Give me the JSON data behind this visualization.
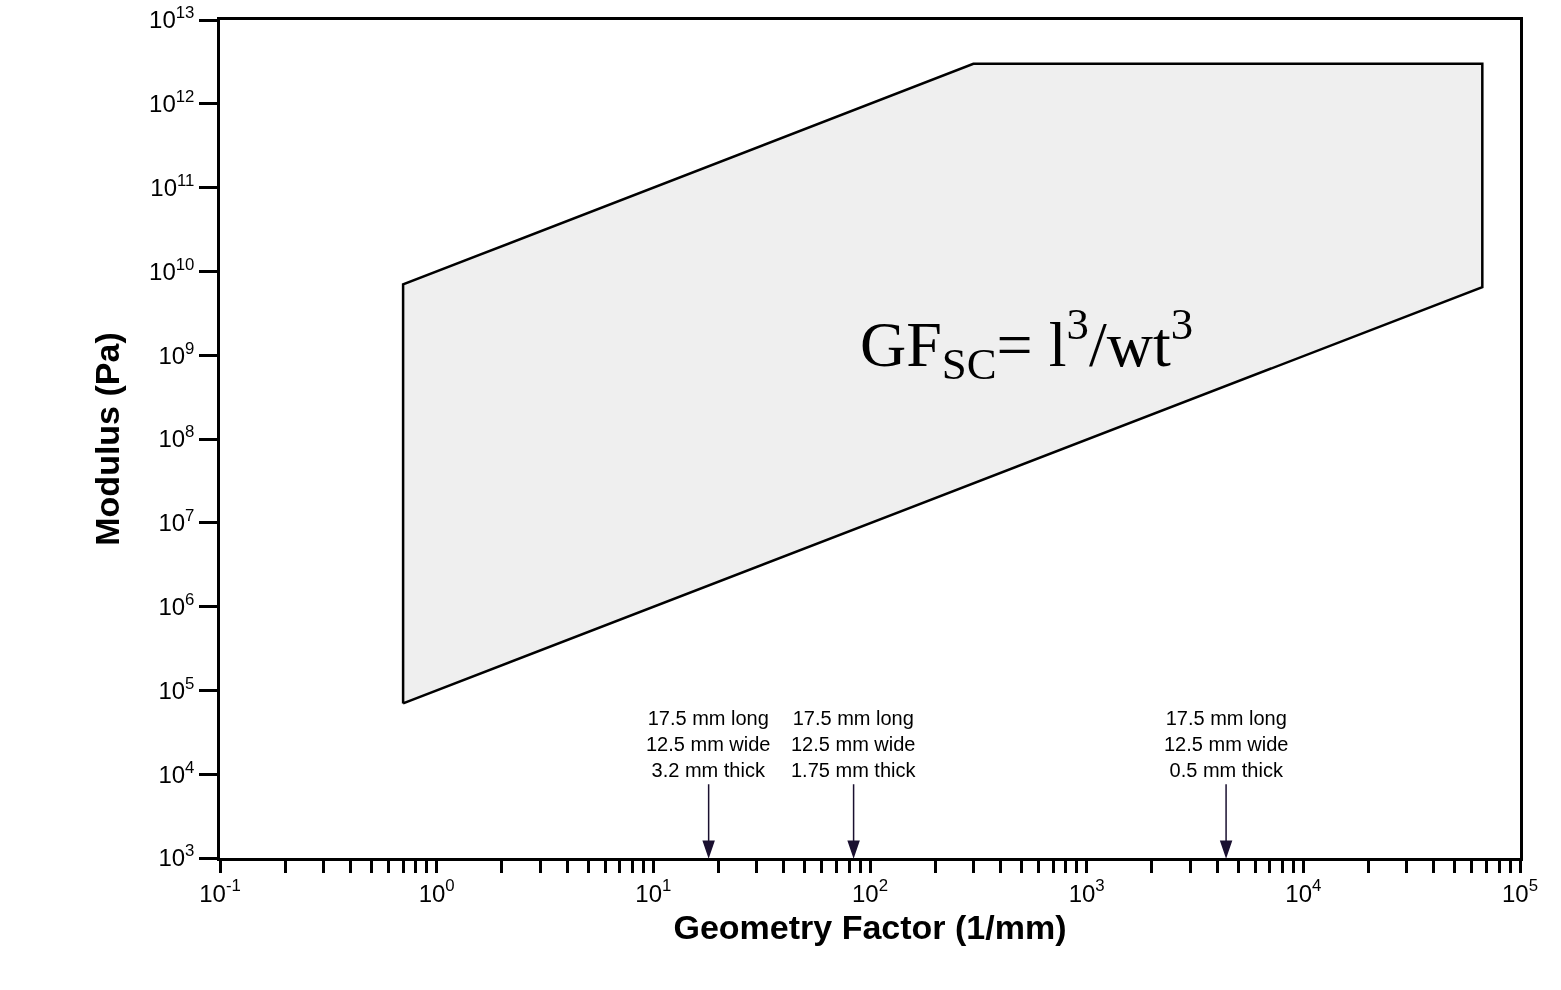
{
  "chart_data": {
    "type": "area",
    "xlabel": "Geometry Factor (1/mm)",
    "ylabel": "Modulus (Pa)",
    "log": "xy",
    "grid": false,
    "marker": "none",
    "line_style": "solid",
    "xlim": [
      0.1,
      100000
    ],
    "ylim": [
      1000,
      10000000000000
    ],
    "xticks": [
      {
        "value": 0.1,
        "label": "10$^{-1}$"
      },
      {
        "value": 0.2,
        "label": null
      },
      {
        "value": 0.3,
        "label": null
      },
      {
        "value": 0.4,
        "label": null
      },
      {
        "value": 0.5,
        "label": null
      },
      {
        "value": 0.6,
        "label": null
      },
      {
        "value": 0.7,
        "label": null
      },
      {
        "value": 0.8,
        "label": null
      },
      {
        "value": 0.9,
        "label": null
      },
      {
        "value": 1,
        "label": "10$^{0}$"
      },
      {
        "value": 2,
        "label": null
      },
      {
        "value": 3,
        "label": null
      },
      {
        "value": 4,
        "label": null
      },
      {
        "value": 5,
        "label": null
      },
      {
        "value": 6,
        "label": null
      },
      {
        "value": 7,
        "label": null
      },
      {
        "value": 8,
        "label": null
      },
      {
        "value": 9,
        "label": null
      },
      {
        "value": 10,
        "label": "10$^{1}$"
      },
      {
        "value": 20,
        "label": null
      },
      {
        "value": 30,
        "label": null
      },
      {
        "value": 40,
        "label": null
      },
      {
        "value": 50,
        "label": null
      },
      {
        "value": 60,
        "label": null
      },
      {
        "value": 70,
        "label": null
      },
      {
        "value": 80,
        "label": null
      },
      {
        "value": 90,
        "label": null
      },
      {
        "value": 100,
        "label": "10$^{2}$"
      },
      {
        "value": 200,
        "label": null
      },
      {
        "value": 300,
        "label": null
      },
      {
        "value": 400,
        "label": null
      },
      {
        "value": 500,
        "label": null
      },
      {
        "value": 600,
        "label": null
      },
      {
        "value": 700,
        "label": null
      },
      {
        "value": 800,
        "label": null
      },
      {
        "value": 900,
        "label": null
      },
      {
        "value": 1000,
        "label": "10$^{3}$"
      },
      {
        "value": 2000,
        "label": null
      },
      {
        "value": 3000,
        "label": null
      },
      {
        "value": 4000,
        "label": null
      },
      {
        "value": 5000,
        "label": null
      },
      {
        "value": 6000,
        "label": null
      },
      {
        "value": 7000,
        "label": null
      },
      {
        "value": 8000,
        "label": null
      },
      {
        "value": 9000,
        "label": null
      },
      {
        "value": 10000,
        "label": "10$^{4}$"
      },
      {
        "value": 20000,
        "label": null
      },
      {
        "value": 30000,
        "label": null
      },
      {
        "value": 40000,
        "label": null
      },
      {
        "value": 50000,
        "label": null
      },
      {
        "value": 60000,
        "label": null
      },
      {
        "value": 70000,
        "label": null
      },
      {
        "value": 80000,
        "label": null
      },
      {
        "value": 90000,
        "label": null
      },
      {
        "value": 100000,
        "label": "10$^{5}$"
      }
    ],
    "yticks": [
      {
        "value": 1000,
        "label": "10$^{3}$"
      },
      {
        "value": 10000,
        "label": "10$^{4}$"
      },
      {
        "value": 100000,
        "label": "10$^{5}$"
      },
      {
        "value": 1000000,
        "label": "10$^{6}$"
      },
      {
        "value": 10000000,
        "label": "10$^{7}$"
      },
      {
        "value": 100000000,
        "label": "10$^{8}$"
      },
      {
        "value": 1000000000,
        "label": "10$^{9}$"
      },
      {
        "value": 10000000000,
        "label": "10$^{10}$"
      },
      {
        "value": 100000000000,
        "label": "10$^{11}$"
      },
      {
        "value": 1000000000000,
        "label": "10$^{12}$"
      },
      {
        "value": 10000000000000,
        "label": "10$^{13}$"
      }
    ],
    "series": [
      {
        "color": "#efefef",
        "x": [
          0.7,
          0.7,
          300,
          67000,
          67000,
          0.7
        ],
        "values": [
          70000,
          7000000000,
          3000000000000,
          3000000000000,
          6500000000,
          70000
        ]
      }
    ],
    "annotations": [
      "GF$_{SC}$= l$^{3}$/wt$^{3}$"
    ],
    "ref_lines": [
      {
        "axis": "x",
        "value": 18,
        "label": "17.5 mm long\n12.5 mm wide\n3.2 mm thick",
        "color": "#1a1030"
      },
      {
        "axis": "x",
        "value": 84,
        "label": "17.5 mm long\n12.5 mm wide\n1.75 mm thick",
        "color": "#1a1030"
      },
      {
        "axis": "x",
        "value": 4400,
        "label": "17.5 mm long\n12.5 mm wide\n0.5 mm thick",
        "color": "#1a1030"
      }
    ]
  }
}
